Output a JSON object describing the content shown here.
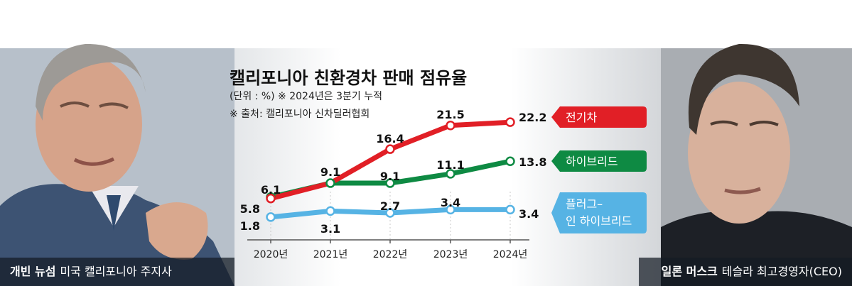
{
  "left_caption": {
    "name": "개빈 뉴섬",
    "role": "미국 캘리포니아 주지사"
  },
  "right_caption": {
    "name": "일론 머스크",
    "role": "테슬라 최고경영자(CEO)"
  },
  "chart_data": {
    "type": "line",
    "title": "캘리포니아 친환경차 판매 점유율",
    "unit_note": "(단위 : %) ※ 2024년은 3분기 누적",
    "source": "※ 출처: 캘리포니아 신차딜러협회",
    "categories": [
      "2020년",
      "2021년",
      "2022년",
      "2023년",
      "2024년"
    ],
    "ylim": [
      0,
      25
    ],
    "xlabel": "",
    "ylabel": "",
    "series": [
      {
        "name": "전기차",
        "label_lines": [
          "전기차"
        ],
        "color": "#e11f26",
        "values": [
          5.8,
          9.1,
          16.4,
          21.5,
          22.2
        ]
      },
      {
        "name": "하이브리드",
        "label_lines": [
          "하이브리드"
        ],
        "color": "#0e8a43",
        "values": [
          6.1,
          9.1,
          9.1,
          11.1,
          13.8
        ]
      },
      {
        "name": "플러그-인 하이브리드",
        "label_lines": [
          "플러그–",
          "인 하이브리드"
        ],
        "color": "#56b3e4",
        "values": [
          1.8,
          3.1,
          2.7,
          3.4,
          3.4
        ]
      }
    ],
    "data_labels": [
      [
        "5.8",
        "9.1",
        "16.4",
        "21.5",
        "22.2"
      ],
      [
        "6.1",
        "",
        "9.1",
        "11.1",
        "13.8"
      ],
      [
        "1.8",
        "3.1",
        "2.7",
        "3.4",
        "3.4"
      ]
    ]
  }
}
